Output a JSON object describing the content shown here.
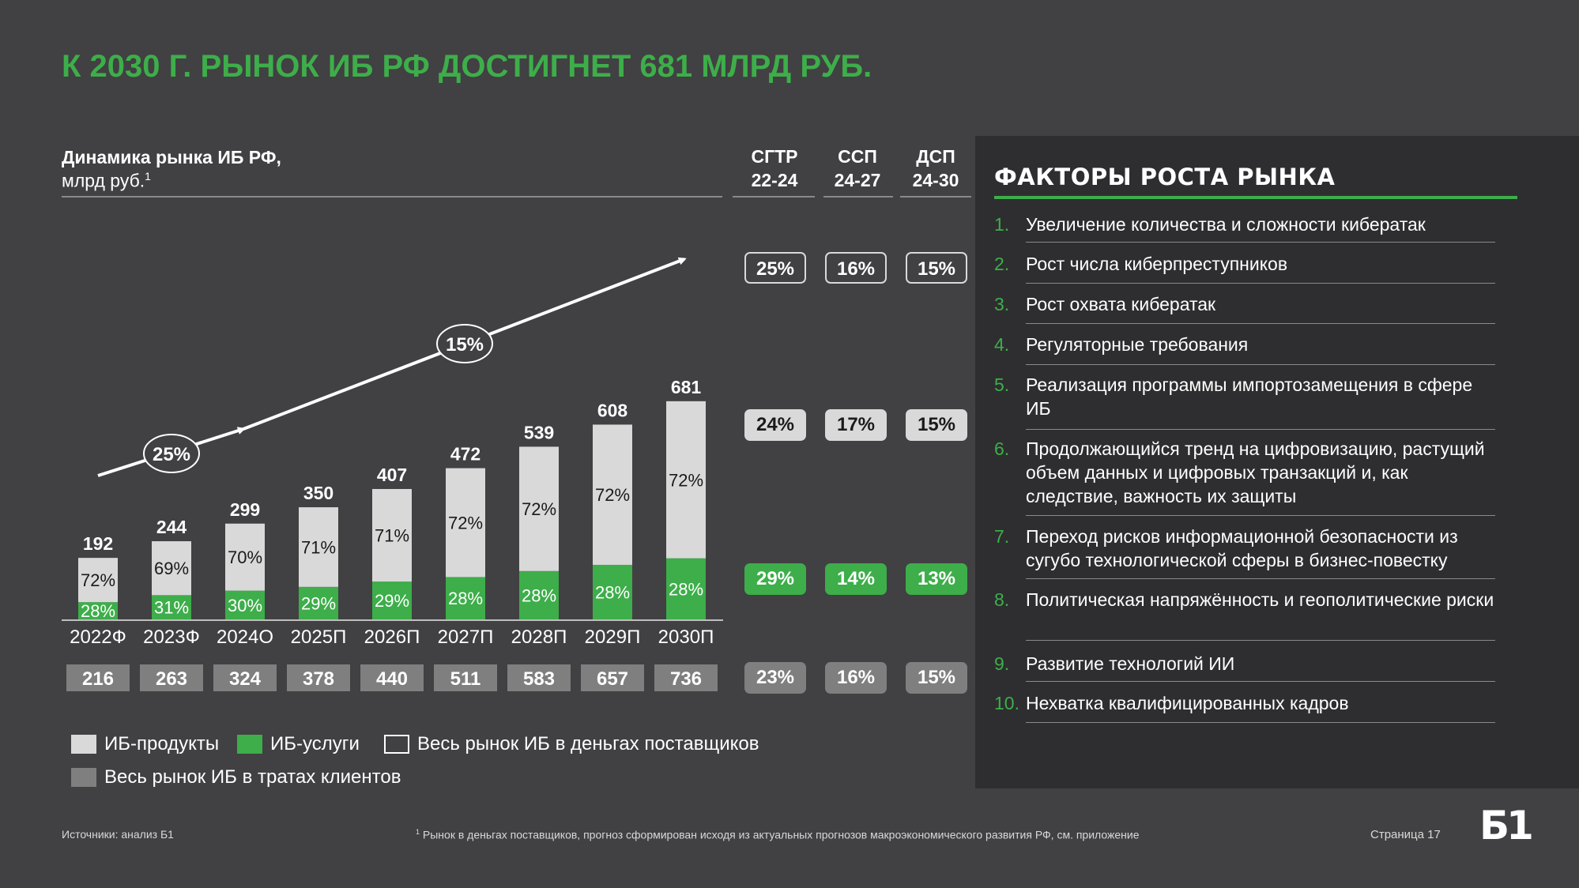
{
  "title": "К 2030 Г. РЫНОК ИБ РФ ДОСТИГНЕТ 681 МЛРД РУБ.",
  "chart_header": {
    "title": "Динамика рынка ИБ РФ,",
    "unit": "млрд руб.",
    "footnote_mark": "1"
  },
  "rate_columns": [
    {
      "label_top": "СГТР",
      "label_bottom": "22-24"
    },
    {
      "label_top": "ССП",
      "label_bottom": "24-27"
    },
    {
      "label_top": "ДСП",
      "label_bottom": "24-30"
    }
  ],
  "rates": {
    "total": [
      "25%",
      "16%",
      "15%"
    ],
    "products": [
      "24%",
      "17%",
      "15%"
    ],
    "services": [
      "29%",
      "14%",
      "13%"
    ],
    "client_spend": [
      "23%",
      "16%",
      "15%"
    ]
  },
  "chart_data": {
    "type": "bar",
    "stacked": true,
    "categories": [
      "2022Ф",
      "2023Ф",
      "2024О",
      "2025П",
      "2026П",
      "2027П",
      "2028П",
      "2029П",
      "2030П"
    ],
    "totals": [
      192,
      244,
      299,
      350,
      407,
      472,
      539,
      608,
      681
    ],
    "series": [
      {
        "name": "ИБ-услуги",
        "color": "#3dae4a",
        "share_labels": [
          "28%",
          "31%",
          "30%",
          "29%",
          "29%",
          "28%",
          "28%",
          "28%",
          "28%"
        ],
        "shares": [
          28,
          31,
          30,
          29,
          29,
          28,
          28,
          28,
          28
        ]
      },
      {
        "name": "ИБ-продукты",
        "color": "#d9d9d9",
        "share_labels": [
          "72%",
          "69%",
          "70%",
          "71%",
          "71%",
          "72%",
          "72%",
          "72%",
          "72%"
        ],
        "shares": [
          72,
          69,
          70,
          71,
          71,
          72,
          72,
          72,
          72
        ]
      }
    ],
    "client_spend": {
      "name": "Весь рынок ИБ в тратах клиентов",
      "values": [
        216,
        263,
        324,
        378,
        440,
        511,
        583,
        657,
        736
      ]
    },
    "trend_labels": [
      "25%",
      "15%"
    ],
    "legend": [
      {
        "label": "ИБ-продукты",
        "color": "#d9d9d9",
        "style": "fill"
      },
      {
        "label": "ИБ-услуги",
        "color": "#3dae4a",
        "style": "fill"
      },
      {
        "label": "Весь рынок ИБ в деньгах поставщиков",
        "color": "#ffffff",
        "style": "outline"
      },
      {
        "label": "Весь рынок ИБ в тратах клиентов",
        "color": "#7f7f7f",
        "style": "fill"
      }
    ],
    "ylim": [
      0,
      700
    ]
  },
  "factors": {
    "title": "ФАКТОРЫ РОСТА РЫНКА",
    "items": [
      {
        "num": "1.",
        "text": "Увеличение количества и сложности кибератак"
      },
      {
        "num": "2.",
        "text": "Рост числа киберпреступников"
      },
      {
        "num": "3.",
        "text": "Рост охвата кибератак"
      },
      {
        "num": "4.",
        "text": "Регуляторные требования"
      },
      {
        "num": "5.",
        "text": "Реализация программы импортозамещения в сфере ИБ"
      },
      {
        "num": "6.",
        "text": "Продолжающийся тренд на цифровизацию, растущий объем данных и цифровых транзакций и, как следствие, важность их защиты"
      },
      {
        "num": "7.",
        "text": "Переход рисков информационной безопасности из сугубо технологической сферы в бизнес-повестку"
      },
      {
        "num": "8.",
        "text": "Политическая напряжённость и геополитические риски"
      },
      {
        "num": "9.",
        "text": "Развитие технологий ИИ"
      },
      {
        "num": "10.",
        "text": "Нехватка квалифицированных кадров"
      }
    ]
  },
  "footer": {
    "sources": "Источники: анализ Б1",
    "note_mark": "1",
    "note": "Рынок в деньгах поставщиков, прогноз сформирован исходя из актуальных прогнозов макроэкономического развития РФ, см. приложение",
    "page": "Страница 17",
    "logo": "Б1"
  }
}
